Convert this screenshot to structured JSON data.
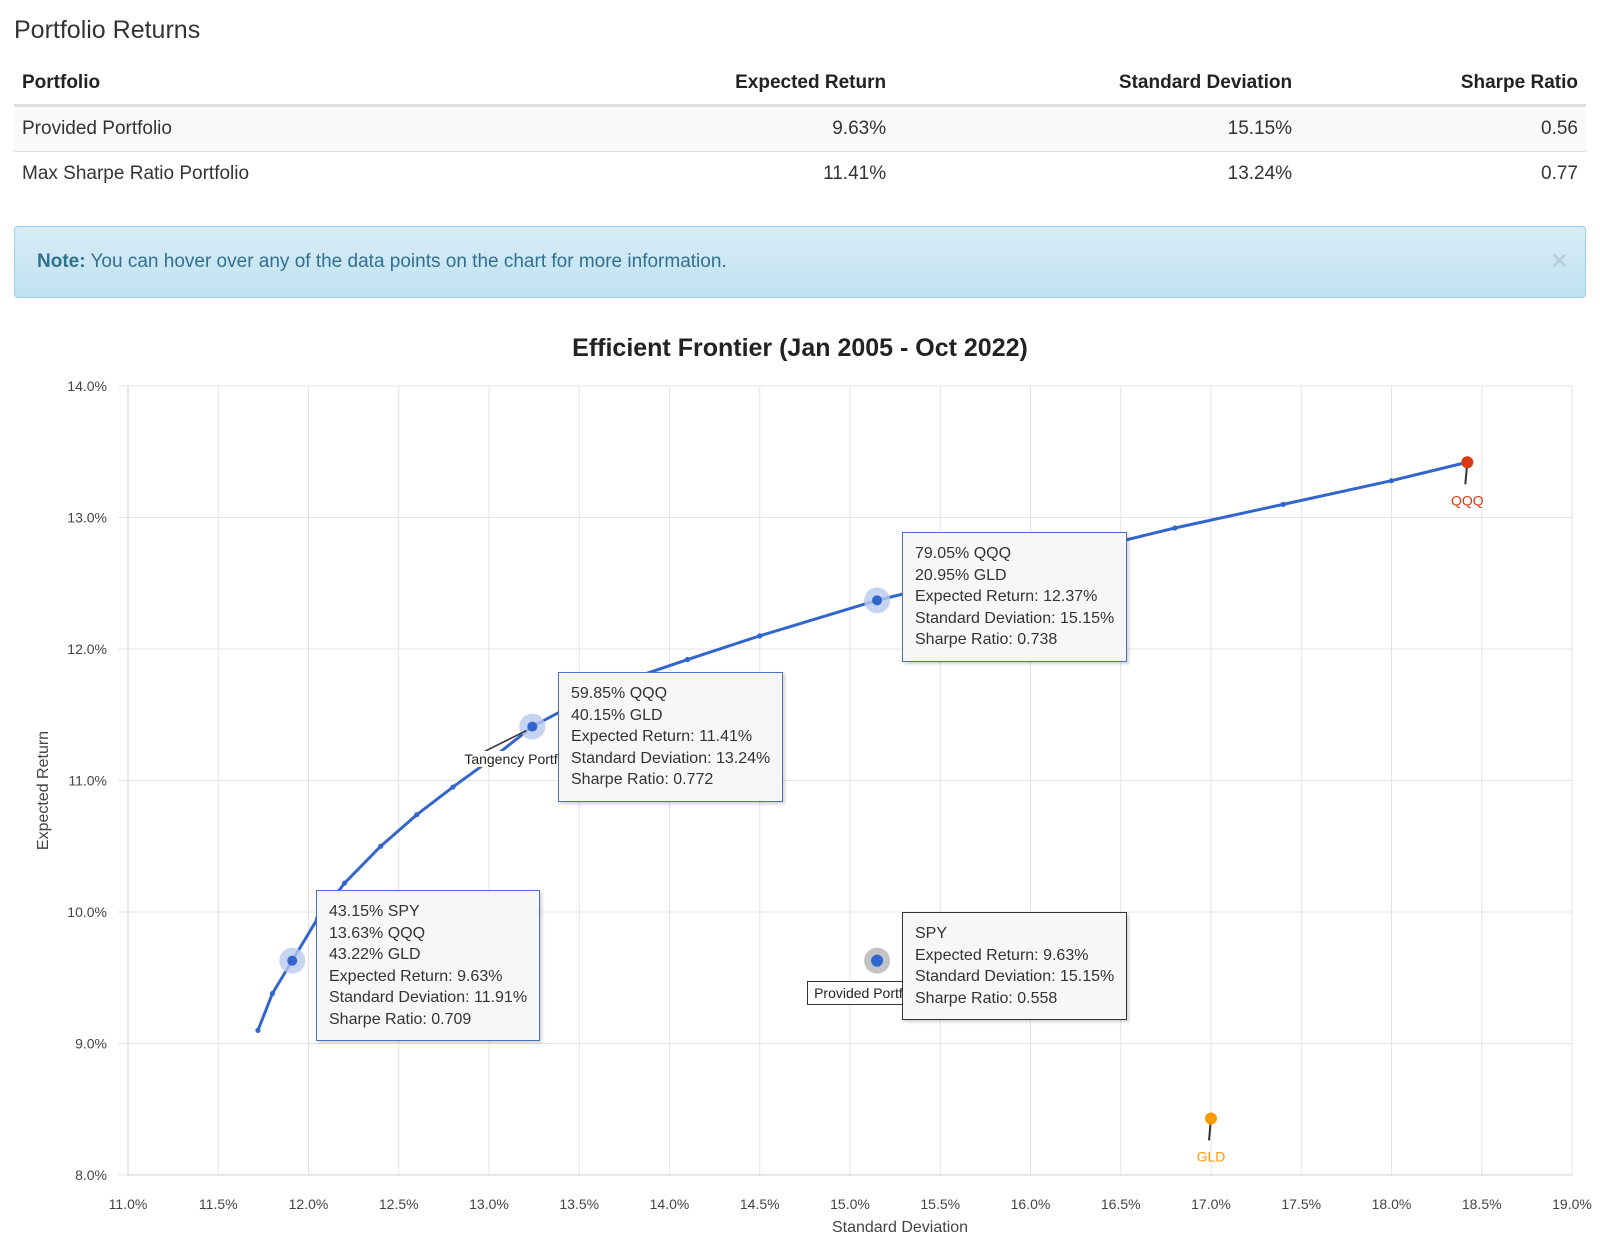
{
  "section_title": "Portfolio Returns",
  "table": {
    "headers": [
      "Portfolio",
      "Expected Return",
      "Standard Deviation",
      "Sharpe Ratio"
    ],
    "rows": [
      [
        "Provided Portfolio",
        "9.63%",
        "15.15%",
        "0.56"
      ],
      [
        "Max Sharpe Ratio Portfolio",
        "11.41%",
        "13.24%",
        "0.77"
      ]
    ]
  },
  "note": {
    "label": "Note:",
    "text": " You can hover over any of the data points on the chart for more information.",
    "close": "×"
  },
  "colors": {
    "frontier": "#3366cc",
    "qqq": "#dc3912",
    "gld": "#ff9900",
    "provided": "#3366cc"
  },
  "chart_data": {
    "type": "scatter",
    "title": "Efficient Frontier (Jan 2005 - Oct 2022)",
    "xlabel": "Standard Deviation",
    "ylabel": "Expected Return",
    "xlim": [
      11.0,
      19.0
    ],
    "ylim": [
      8.0,
      14.0
    ],
    "x_ticks": [
      "11.0%",
      "11.5%",
      "12.0%",
      "12.5%",
      "13.0%",
      "13.5%",
      "14.0%",
      "14.5%",
      "15.0%",
      "15.5%",
      "16.0%",
      "16.5%",
      "17.0%",
      "17.5%",
      "18.0%",
      "18.5%",
      "19.0%"
    ],
    "y_ticks": [
      "8.0%",
      "9.0%",
      "10.0%",
      "11.0%",
      "12.0%",
      "13.0%",
      "14.0%"
    ],
    "grid": true,
    "frontier": {
      "x": [
        11.72,
        11.8,
        11.91,
        12.05,
        12.2,
        12.4,
        12.6,
        12.8,
        13.0,
        13.24,
        13.5,
        13.8,
        14.1,
        14.5,
        15.15,
        15.6,
        16.2,
        16.8,
        17.4,
        18.0,
        18.42
      ],
      "y": [
        9.1,
        9.38,
        9.63,
        9.95,
        10.22,
        10.5,
        10.74,
        10.95,
        11.15,
        11.41,
        11.6,
        11.78,
        11.92,
        12.1,
        12.37,
        12.52,
        12.72,
        12.92,
        13.1,
        13.28,
        13.42
      ]
    },
    "assets": [
      {
        "name": "QQQ",
        "x": 18.42,
        "y": 13.42
      },
      {
        "name": "GLD",
        "x": 17.0,
        "y": 8.43
      }
    ],
    "highlighted": [
      {
        "x": 11.91,
        "y": 9.63,
        "lines": [
          "43.15% SPY",
          "13.63% QQQ",
          "43.22% GLD",
          "Expected Return: 9.63%",
          "Standard Deviation: 11.91%",
          "Sharpe Ratio: 0.709"
        ]
      },
      {
        "x": 13.24,
        "y": 11.41,
        "label": "Tangency Portfolio",
        "lines": [
          "59.85% QQQ",
          "40.15% GLD",
          "Expected Return: 11.41%",
          "Standard Deviation: 13.24%",
          "Sharpe Ratio: 0.772"
        ]
      },
      {
        "x": 15.15,
        "y": 12.37,
        "lines": [
          "79.05% QQQ",
          "20.95% GLD",
          "Expected Return: 12.37%",
          "Standard Deviation: 15.15%",
          "Sharpe Ratio: 0.738"
        ]
      }
    ],
    "provided": {
      "x": 15.15,
      "y": 9.63,
      "label": "Provided Portfolio",
      "lines": [
        "SPY",
        "Expected Return: 9.63%",
        "Standard Deviation: 15.15%",
        "Sharpe Ratio: 0.558"
      ]
    }
  }
}
